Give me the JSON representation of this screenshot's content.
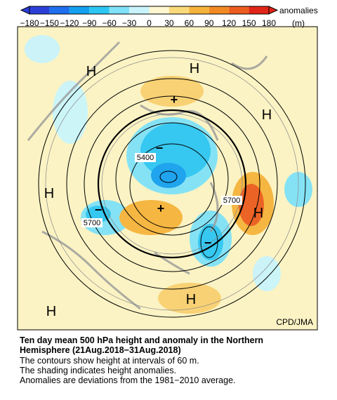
{
  "colorbar": {
    "ticks": [
      "−180",
      "−150",
      "−120",
      "−90",
      "−60",
      "−30",
      "0",
      "30",
      "60",
      "90",
      "120",
      "150",
      "180"
    ],
    "colors": [
      "#2b3fd8",
      "#1f6fee",
      "#14a0f0",
      "#2cc6f4",
      "#7fe2f8",
      "#c9f4fb",
      "#fdf6d0",
      "#f9d97a",
      "#f6b33c",
      "#f28a24",
      "#ec5c1e",
      "#e02418"
    ],
    "unit_label": [
      "anomalies",
      "(m)"
    ]
  },
  "map": {
    "labels": [
      "H",
      "H",
      "H",
      "H",
      "H",
      "H",
      "H",
      "+",
      "+",
      "−",
      "−",
      "−"
    ],
    "contour_labels": [
      "5400",
      "5700",
      "5700"
    ],
    "credit": "CPD/JMA"
  },
  "caption": {
    "title": [
      "Ten day mean 500 hPa height and anomaly in the Northern",
      "Hemisphere (21Aug.2018−31Aug.2018)"
    ],
    "lines": [
      "The contours show height at intervals of 60 m.",
      "The shading indicates height anomalies.",
      "Anomalies are deviations from the 1981−2010 average."
    ]
  }
}
